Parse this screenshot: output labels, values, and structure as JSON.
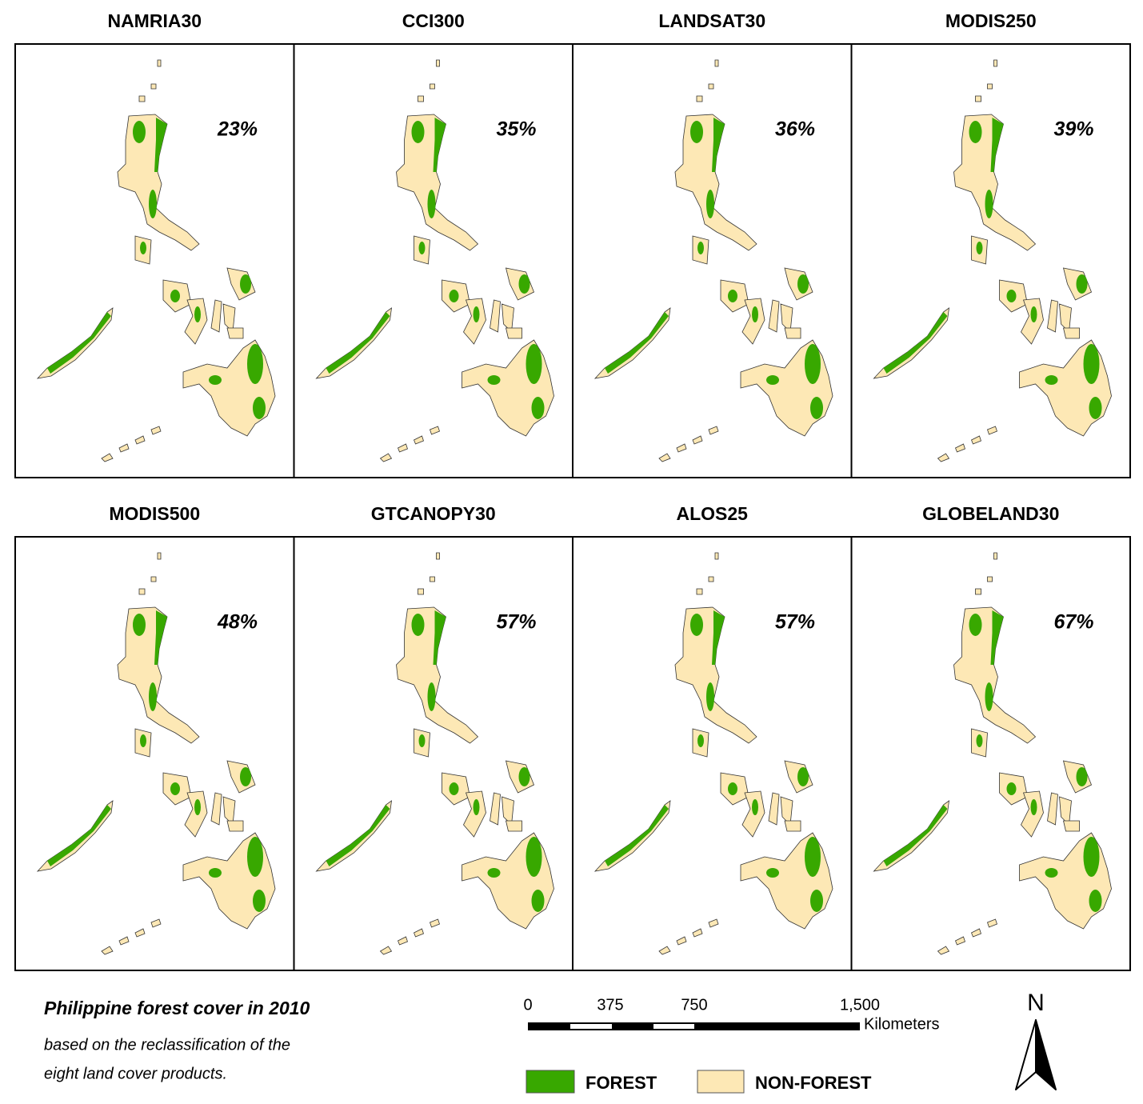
{
  "panels": [
    {
      "title": "NAMRIA30",
      "forest_cover": "23%"
    },
    {
      "title": "CCI300",
      "forest_cover": "35%"
    },
    {
      "title": "LANDSAT30",
      "forest_cover": "36%"
    },
    {
      "title": "MODIS250",
      "forest_cover": "39%"
    },
    {
      "title": "MODIS500",
      "forest_cover": "48%"
    },
    {
      "title": "GTCANOPY30",
      "forest_cover": "57%"
    },
    {
      "title": "ALOS25",
      "forest_cover": "57%"
    },
    {
      "title": "GLOBELAND30",
      "forest_cover": "67%"
    }
  ],
  "caption": {
    "title": "Philippine forest cover in 2010",
    "lines": [
      "based on the reclassification of the",
      "eight land cover products."
    ]
  },
  "scale_bar": {
    "ticks": [
      "0",
      "375",
      "750",
      "1,500"
    ],
    "unit": "Kilometers"
  },
  "legend": [
    {
      "label": "FOREST",
      "color": "#38a800"
    },
    {
      "label": "NON-FOREST",
      "color": "#fde8b5"
    }
  ],
  "north_arrow": "N"
}
